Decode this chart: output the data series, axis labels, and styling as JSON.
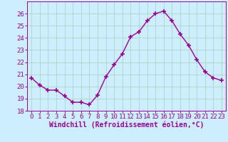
{
  "x": [
    0,
    1,
    2,
    3,
    4,
    5,
    6,
    7,
    8,
    9,
    10,
    11,
    12,
    13,
    14,
    15,
    16,
    17,
    18,
    19,
    20,
    21,
    22,
    23
  ],
  "y": [
    20.7,
    20.1,
    19.7,
    19.7,
    19.2,
    18.7,
    18.7,
    18.5,
    19.3,
    20.8,
    21.8,
    22.7,
    24.1,
    24.5,
    25.4,
    26.0,
    26.2,
    25.4,
    24.3,
    23.4,
    22.2,
    21.2,
    20.7,
    20.5
  ],
  "line_color": "#990099",
  "marker": "+",
  "marker_size": 4,
  "marker_lw": 1.2,
  "bg_color": "#cceeff",
  "grid_color": "#aaccbb",
  "xlabel": "Windchill (Refroidissement éolien,°C)",
  "ylabel": "",
  "ylim": [
    18,
    27
  ],
  "xlim": [
    -0.5,
    23.5
  ],
  "yticks": [
    18,
    19,
    20,
    21,
    22,
    23,
    24,
    25,
    26
  ],
  "xticks": [
    0,
    1,
    2,
    3,
    4,
    5,
    6,
    7,
    8,
    9,
    10,
    11,
    12,
    13,
    14,
    15,
    16,
    17,
    18,
    19,
    20,
    21,
    22,
    23
  ],
  "tick_color": "#990099",
  "label_color": "#990099",
  "font_size": 6.5,
  "xlabel_font_size": 7.0,
  "line_width": 1.0
}
